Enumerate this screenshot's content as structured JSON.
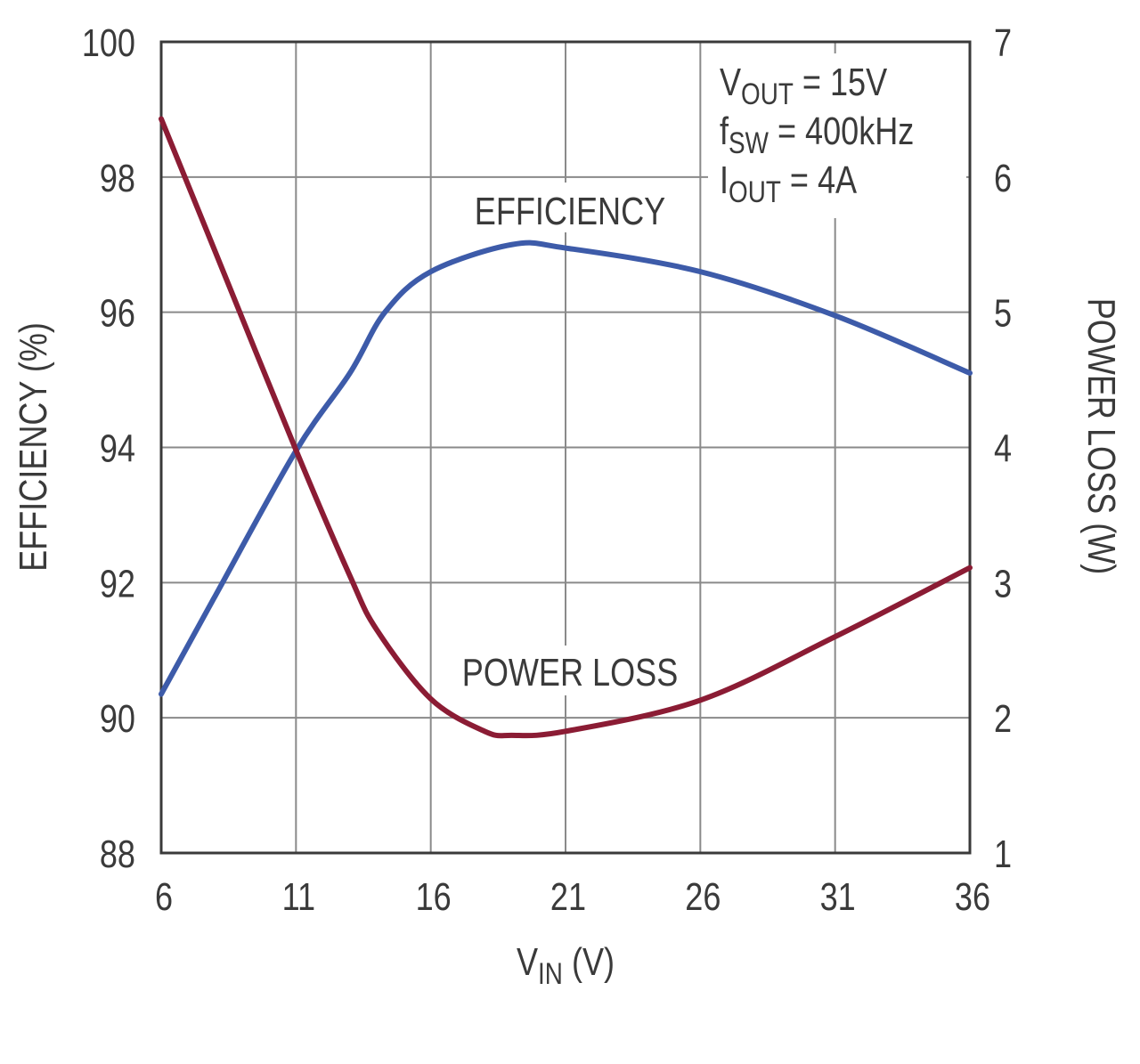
{
  "chart_data": {
    "type": "line",
    "title": "",
    "xlabel": "VIN (V)",
    "xlabel_main": "V",
    "xlabel_sub": "IN",
    "xlabel_unit": " (V)",
    "ylabel": "EFFICIENCY (%)",
    "y2label": "POWER LOSS (W)",
    "xlim": [
      6,
      36
    ],
    "ylim": [
      88,
      100
    ],
    "y2lim": [
      1,
      7
    ],
    "xticks": [
      6,
      11,
      16,
      21,
      26,
      31,
      36
    ],
    "yticks": [
      88,
      90,
      92,
      94,
      96,
      98,
      100
    ],
    "y2ticks": [
      1,
      2,
      3,
      4,
      5,
      6,
      7
    ],
    "grid": true,
    "colors": {
      "efficiency": "#3d5ba9",
      "power_loss": "#8b1c34",
      "grid": "#8a8a8a",
      "axis": "#3a3a3a"
    },
    "series": [
      {
        "name": "EFFICIENCY",
        "axis": "left",
        "x": [
          6,
          8,
          11,
          13,
          14.3,
          16,
          19,
          21,
          26,
          31,
          36
        ],
        "y": [
          90.35,
          91.8,
          93.95,
          95.1,
          96.0,
          96.6,
          97.0,
          96.95,
          96.6,
          95.95,
          95.1
        ]
      },
      {
        "name": "POWER LOSS",
        "axis": "right",
        "x": [
          6,
          8,
          11,
          13,
          14,
          16,
          18,
          19,
          21,
          26,
          31,
          36
        ],
        "y": [
          6.43,
          5.45,
          3.98,
          3.05,
          2.65,
          2.14,
          1.9,
          1.87,
          1.9,
          2.13,
          2.6,
          3.11
        ]
      }
    ],
    "annotations": {
      "efficiency_label": "EFFICIENCY",
      "power_loss_label": "POWER LOSS",
      "conditions": [
        {
          "main": "V",
          "sub": "OUT",
          "rest": " = 15V"
        },
        {
          "main": "f",
          "sub": "SW",
          "rest": " = 400kHz"
        },
        {
          "main": "I",
          "sub": "OUT",
          "rest": " = 4A"
        }
      ]
    }
  }
}
